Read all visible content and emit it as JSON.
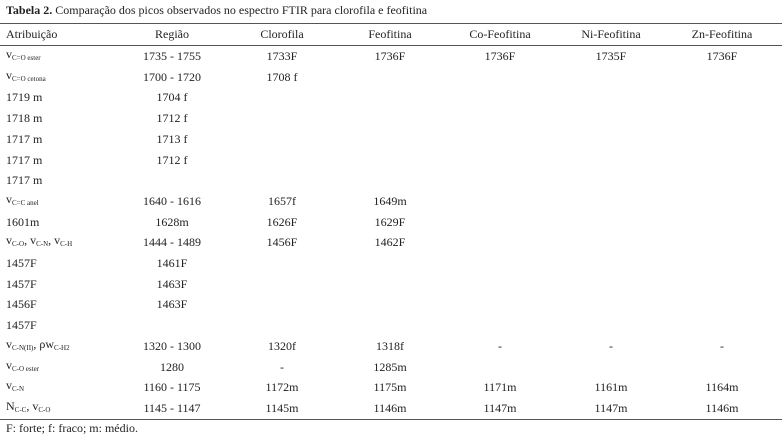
{
  "caption": {
    "label": "Tabela 2.",
    "text": "Comparação dos picos observados no espectro FTIR para clorofila e feofitina"
  },
  "table": {
    "header": [
      "Atribuição",
      "Região",
      "Clorofila",
      "Feofitina",
      "Co-Feofitina",
      "Ni-Feofitina",
      "Zn-Feofitina"
    ],
    "rows": [
      [
        [
          {
            "base": "v",
            "sub": "C=O ester"
          }
        ],
        "1735 - 1755",
        "1733F",
        "1736F",
        "1736F",
        "1735F",
        "1736F"
      ],
      [
        [
          {
            "base": "v",
            "sub": "C=O cetona"
          }
        ],
        "1700 - 1720",
        "1708 f",
        null,
        null,
        null,
        null
      ],
      [
        "1719 m",
        "1704 f",
        null,
        null,
        null,
        null,
        null
      ],
      [
        "1718 m",
        "1712 f",
        null,
        null,
        null,
        null,
        null
      ],
      [
        "1717 m",
        "1713 f",
        null,
        null,
        null,
        null,
        null
      ],
      [
        "1717 m",
        "1712 f",
        null,
        null,
        null,
        null,
        null
      ],
      [
        "1717 m",
        null,
        null,
        null,
        null,
        null,
        null
      ],
      [
        [
          {
            "base": "v",
            "sub": "C=C anel"
          }
        ],
        "1640 - 1616",
        "1657f",
        "1649m",
        null,
        null,
        null
      ],
      [
        "1601m",
        "1628m",
        "1626F",
        "1629F",
        null,
        null,
        null
      ],
      [
        [
          {
            "base": "v",
            "sub": "C-O"
          },
          {
            "base": ", v",
            "sub": "C-N"
          },
          {
            "base": ", v",
            "sub": "C-H"
          }
        ],
        "1444 - 1489",
        "1456F",
        "1462F",
        null,
        null,
        null
      ],
      [
        "1457F",
        "1461F",
        null,
        null,
        null,
        null,
        null
      ],
      [
        "1457F",
        "1463F",
        null,
        null,
        null,
        null,
        null
      ],
      [
        "1456F",
        "1463F",
        null,
        null,
        null,
        null,
        null
      ],
      [
        "1457F",
        null,
        null,
        null,
        null,
        null,
        null
      ],
      [
        [
          {
            "base": "v",
            "sub": "C-N(II)"
          },
          {
            "base": ", ρw",
            "sub": "C-H2"
          }
        ],
        "1320 - 1300",
        "1320f",
        "1318f",
        "-",
        "-",
        "-"
      ],
      [
        [
          {
            "base": "v",
            "sub": "C-O ester"
          }
        ],
        "1280",
        "-",
        "1285m",
        null,
        null,
        null
      ],
      [
        [
          {
            "base": "v",
            "sub": "C-N"
          }
        ],
        "1160 - 1175",
        "1172m",
        "1175m",
        "1171m",
        "1161m",
        "1164m"
      ],
      [
        [
          {
            "base": "N",
            "sub": "C-C"
          },
          {
            "base": ", v",
            "sub": "C-O"
          }
        ],
        "1145 - 1147",
        "1145m",
        "1146m",
        "1147m",
        "1147m",
        "1146m"
      ]
    ]
  },
  "footnote": "F: forte; f: fraco; m: médio."
}
